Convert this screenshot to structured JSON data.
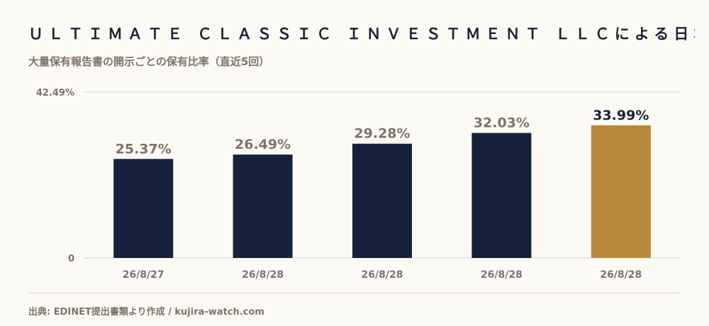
{
  "header": {
    "title": "ＵＬＴＩＭＡＴＥ ＣＬＡＳＳＩＣ ＩＮＶＥＳＴＭＥＮＴ ＬＬＣによる日本製麻の保…",
    "subtitle": "大量保有報告書の開示ごとの保有比率（直近5回）"
  },
  "footer": {
    "source": "出典: EDINET提出書類より作成 / kujira-watch.com"
  },
  "colors": {
    "bar": "#16213d",
    "highlight": "#b8893b",
    "label": "#7d746a",
    "highlight_label": "#1b2236",
    "grid": "#dcd6c6"
  },
  "chart_data": {
    "type": "bar",
    "categories": [
      "26/8/27",
      "26/8/28",
      "26/8/28",
      "26/8/28",
      "26/8/28"
    ],
    "values": [
      25.37,
      26.49,
      29.28,
      32.03,
      33.99
    ],
    "value_labels": [
      "25.37%",
      "26.49%",
      "29.28%",
      "32.03%",
      "33.99%"
    ],
    "highlight_index": 4,
    "ylim": [
      0,
      42.49
    ],
    "y_tick_labels": [
      "0",
      "42.49%"
    ],
    "xlabel": "",
    "ylabel": "",
    "grid": true
  }
}
